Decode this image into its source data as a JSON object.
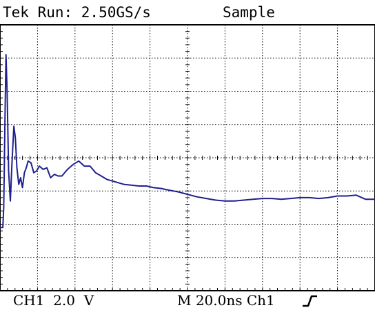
{
  "header": {
    "run_status": "Tek Run: 2.50GS/s",
    "acq_mode": "Sample"
  },
  "footer": {
    "channel_scale": "CH1  2.0  V",
    "timebase": "M 20.0ns Ch1"
  },
  "colors": {
    "trace": "#1f1f8f",
    "grid": "#000000",
    "background": "#ffffff"
  },
  "icons": {
    "trigger": "rising-edge-icon"
  },
  "chart_data": {
    "type": "line",
    "title": "",
    "xlabel": "",
    "ylabel": "",
    "grid": true,
    "divisions": {
      "x": 10,
      "y": 8
    },
    "xlim": [
      0,
      200
    ],
    "ylim": [
      -8,
      8
    ],
    "x_units": "ns",
    "y_units": "V",
    "series": [
      {
        "x": [
          0,
          1.0,
          1.5,
          2.0,
          2.6,
          3.2,
          3.8,
          4.6,
          5.5,
          6.4,
          7.4,
          8.2,
          9.0,
          10,
          11,
          12,
          13,
          14,
          15,
          16.5,
          18,
          19.5,
          21,
          23,
          25,
          27,
          29,
          31,
          33,
          36,
          39,
          42,
          45,
          48,
          51,
          54,
          57,
          60,
          63,
          66,
          70,
          74,
          78,
          82,
          86,
          90,
          95,
          100,
          105,
          110,
          115,
          120,
          125,
          130,
          135,
          140,
          145,
          150,
          155,
          160,
          165,
          170,
          175,
          180,
          185,
          190,
          195,
          200
        ],
        "values": [
          -4.2,
          -4.2,
          -4.2,
          -3.0,
          2.0,
          6.2,
          4.0,
          -0.8,
          -2.6,
          -0.3,
          1.9,
          1.2,
          -0.6,
          -1.6,
          -1.2,
          -1.8,
          -0.9,
          -0.6,
          -0.2,
          -0.3,
          -0.9,
          -0.8,
          -0.5,
          -0.7,
          -0.6,
          -1.2,
          -1.0,
          -1.1,
          -1.1,
          -0.7,
          -0.4,
          -0.2,
          -0.5,
          -0.5,
          -0.9,
          -1.1,
          -1.3,
          -1.4,
          -1.5,
          -1.6,
          -1.65,
          -1.7,
          -1.7,
          -1.8,
          -1.85,
          -1.95,
          -2.05,
          -2.2,
          -2.35,
          -2.45,
          -2.55,
          -2.6,
          -2.6,
          -2.55,
          -2.5,
          -2.45,
          -2.45,
          -2.5,
          -2.45,
          -2.4,
          -2.4,
          -2.45,
          -2.4,
          -2.3,
          -2.3,
          -2.25,
          -2.5,
          -2.5
        ]
      }
    ]
  }
}
